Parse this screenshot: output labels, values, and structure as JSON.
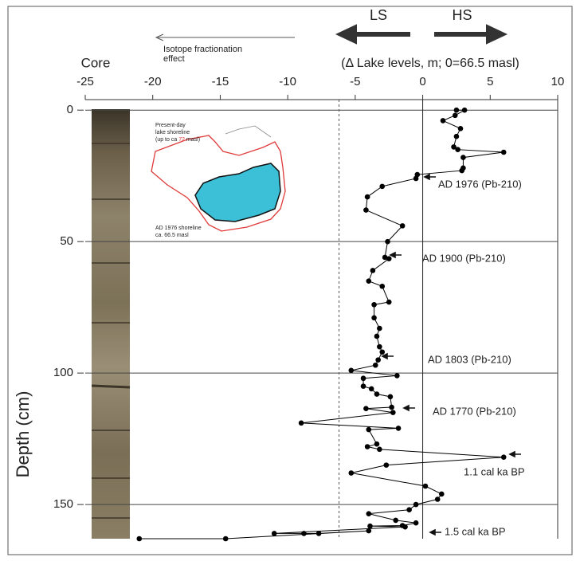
{
  "chart_data": {
    "type": "line",
    "x_label": "(Δ Lake levels, m; 0=66.5 masl)",
    "y_label": "Depth (cm)",
    "core_label": "Core",
    "low_stand": "LS",
    "high_stand": "HS",
    "fractionation_label": [
      "Isotope fractionation",
      "effect"
    ],
    "x": [
      2.5,
      3.1,
      2.4,
      1.5,
      2.8,
      2.5,
      2.3,
      2.6,
      6,
      3,
      3,
      2.9,
      -0.4,
      -0.5,
      -3,
      -4.1,
      -4.2,
      -1.5,
      -2.6,
      -2.8,
      -2.5,
      -3.7,
      -4,
      -3,
      -2.5,
      -3.6,
      -3.6,
      -3.2,
      -3.4,
      -3.2,
      -3,
      -3.3,
      -3.5,
      -5.3,
      -1.9,
      -4.4,
      -4.4,
      -3.8,
      -3.4,
      -2.4,
      -2.3,
      -4.2,
      -2.2,
      -9,
      -1.8,
      -4,
      -3.4,
      -4.1,
      -3.2,
      6,
      -2.7,
      -5.3,
      0.2,
      1.4,
      1.1,
      -0.5,
      -1,
      -4,
      -2,
      -0.5,
      -1.5,
      -3.9,
      -1.3,
      -11,
      -8.8,
      -7.7,
      -4,
      -14.6,
      -21
    ],
    "values": [
      0,
      0,
      2,
      4,
      7,
      10,
      14,
      15,
      16,
      18,
      22,
      23,
      24.5,
      26,
      29,
      33,
      38,
      44,
      50,
      56,
      56.5,
      61,
      65,
      67,
      73,
      74,
      79,
      83,
      86,
      90,
      92,
      95,
      97,
      99,
      101,
      102,
      105,
      106,
      108,
      109,
      113,
      113.5,
      115,
      119,
      121,
      121.5,
      127,
      128,
      129,
      132,
      135,
      138,
      143,
      146,
      148,
      150,
      152,
      153.5,
      156,
      157,
      158,
      158.2,
      158.5,
      161,
      161,
      161,
      160,
      163,
      163
    ],
    "color": "#000000",
    "xlim": [
      -25,
      10
    ],
    "xticks": [
      -25,
      -20,
      -15,
      -10,
      -5,
      0,
      5,
      10
    ],
    "ylim": [
      -4,
      163
    ],
    "yticks": [
      0,
      50,
      100,
      150
    ],
    "grid": true,
    "dotted_line_x": -6.2,
    "annotations": [
      "AD 1976 (Pb-210)",
      "AD 1900 (Pb-210)",
      "AD 1803 (Pb-210)",
      "AD 1770 (Pb-210)",
      "1.1 cal ka BP",
      "1.5 cal ka BP"
    ],
    "inset": {
      "shoreline_label": [
        "Present-day",
        "lake shoreline"
      ],
      "shoreline_range": [
        "(up to ca ",
        "72",
        " masl)"
      ],
      "lake_label": [
        "AD 1976 shoreline",
        "ca. 66.5 masl"
      ]
    }
  }
}
